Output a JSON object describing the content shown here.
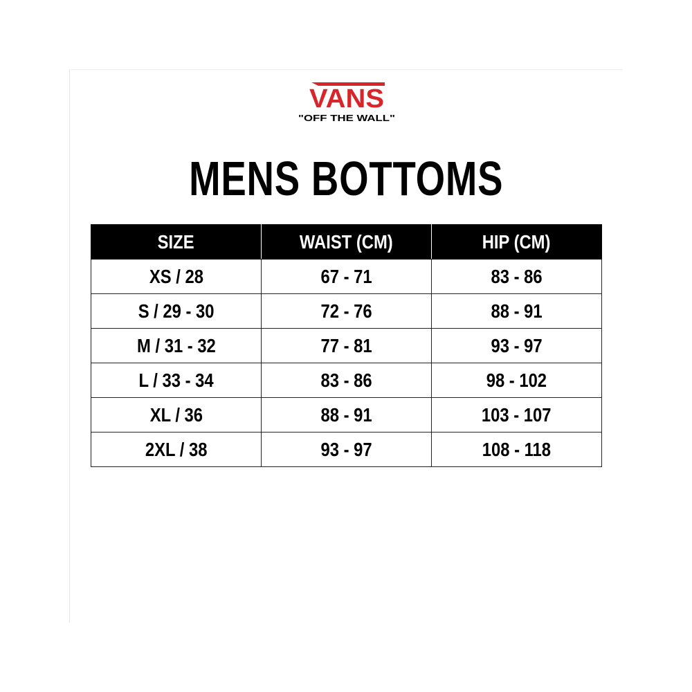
{
  "brand": {
    "logo_text": "VANS",
    "tagline": "\"OFF THE WALL\"",
    "color": "#d7262b"
  },
  "title": "MENS BOTTOMS",
  "table": {
    "headers": [
      "SIZE",
      "WAIST (CM)",
      "HIP (CM)"
    ],
    "rows": [
      [
        "XS / 28",
        "67 - 71",
        "83 - 86"
      ],
      [
        "S / 29 - 30",
        "72 - 76",
        "88 - 91"
      ],
      [
        "M / 31 - 32",
        "77 - 81",
        "93 - 97"
      ],
      [
        "L / 33 - 34",
        "83 - 86",
        "98 - 102"
      ],
      [
        "XL / 36",
        "88 - 91",
        "103 - 107"
      ],
      [
        "2XL / 38",
        "93 - 97",
        "108 - 118"
      ]
    ]
  }
}
